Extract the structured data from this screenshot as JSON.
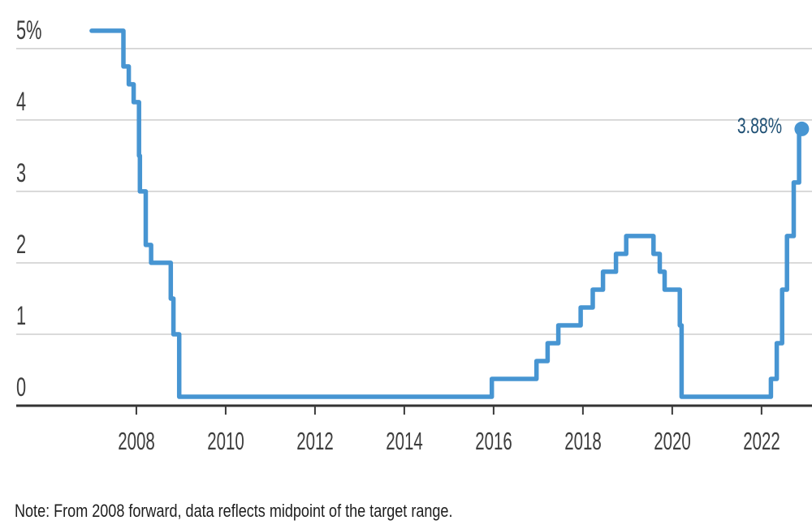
{
  "page": {
    "background": "#ffffff"
  },
  "note_text": "Note: From 2008 forward, data reflects midpoint of the target range.",
  "chart_data": {
    "type": "line",
    "subtype": "step-after",
    "title": "",
    "xlabel": "",
    "ylabel": "",
    "grid": "horizontal",
    "legend": "none",
    "xlim": [
      2005.31,
      2023.13
    ],
    "ylim": [
      0,
      5.68
    ],
    "yticks": [
      {
        "value": 5,
        "label": "5%"
      },
      {
        "value": 4,
        "label": "4"
      },
      {
        "value": 3,
        "label": "3"
      },
      {
        "value": 2,
        "label": "2"
      },
      {
        "value": 1,
        "label": "1"
      },
      {
        "value": 0,
        "label": "0"
      }
    ],
    "xticks": [
      {
        "value": 2008,
        "label": "2008"
      },
      {
        "value": 2010,
        "label": "2010"
      },
      {
        "value": 2012,
        "label": "2012"
      },
      {
        "value": 2014,
        "label": "2014"
      },
      {
        "value": 2016,
        "label": "2016"
      },
      {
        "value": 2018,
        "label": "2018"
      },
      {
        "value": 2020,
        "label": "2020"
      },
      {
        "value": 2022,
        "label": "2022"
      }
    ],
    "series": [
      {
        "points": [
          [
            2007.0,
            5.25
          ],
          [
            2007.71,
            4.75
          ],
          [
            2007.83,
            4.5
          ],
          [
            2007.94,
            4.25
          ],
          [
            2008.06,
            3.5
          ],
          [
            2008.08,
            3.0
          ],
          [
            2008.21,
            2.25
          ],
          [
            2008.33,
            2.0
          ],
          [
            2008.77,
            1.5
          ],
          [
            2008.83,
            1.0
          ],
          [
            2008.96,
            0.125
          ],
          [
            2015.96,
            0.375
          ],
          [
            2016.96,
            0.625
          ],
          [
            2017.21,
            0.875
          ],
          [
            2017.45,
            1.125
          ],
          [
            2017.95,
            1.375
          ],
          [
            2018.22,
            1.625
          ],
          [
            2018.45,
            1.875
          ],
          [
            2018.74,
            2.125
          ],
          [
            2018.97,
            2.375
          ],
          [
            2019.58,
            2.125
          ],
          [
            2019.72,
            1.875
          ],
          [
            2019.83,
            1.625
          ],
          [
            2020.17,
            1.125
          ],
          [
            2020.21,
            0.125
          ],
          [
            2022.21,
            0.375
          ],
          [
            2022.34,
            0.875
          ],
          [
            2022.46,
            1.625
          ],
          [
            2022.57,
            2.375
          ],
          [
            2022.72,
            3.125
          ],
          [
            2022.84,
            3.875
          ]
        ]
      }
    ],
    "end_x": 2022.9,
    "end_value": 3.875,
    "end_label": "3.88%",
    "colors": {
      "line": "#4795d2",
      "marker": "#4795d2",
      "end_label": "#205175",
      "axis_text": "#3d3d3d",
      "grid": "#cdcdcd",
      "baseline": "#333333",
      "tick": "#3a3a3a",
      "note_text": "#1e1e1e"
    }
  }
}
